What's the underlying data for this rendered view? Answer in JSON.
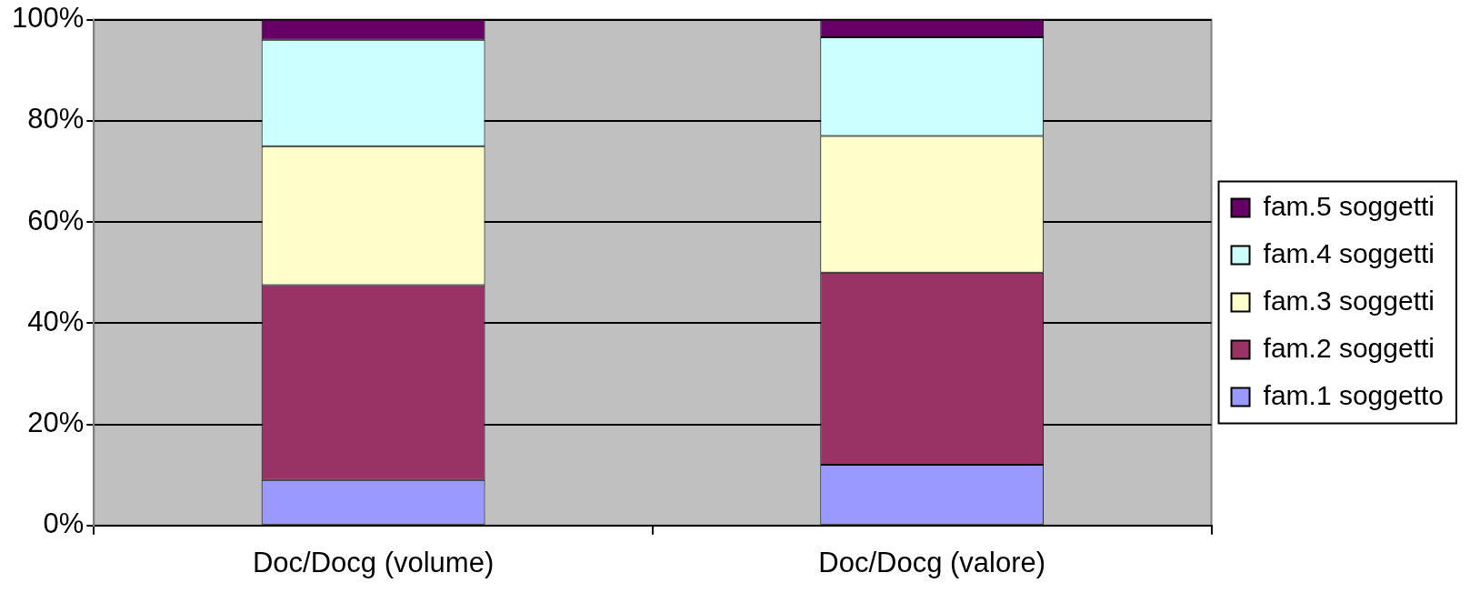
{
  "chart_data": {
    "type": "bar",
    "stacked": true,
    "categories": [
      "Doc/Docg (volume)",
      "Doc/Docg (valore)"
    ],
    "series": [
      {
        "name": "fam.1 soggetto",
        "color": "#9999ff",
        "values": [
          9,
          12
        ]
      },
      {
        "name": "fam.2 soggetti",
        "color": "#993366",
        "values": [
          38.5,
          38
        ]
      },
      {
        "name": "fam.3 soggetti",
        "color": "#ffffcc",
        "values": [
          27.5,
          27
        ]
      },
      {
        "name": "fam.4 soggetti",
        "color": "#ccffff",
        "values": [
          21,
          19.5
        ]
      },
      {
        "name": "fam.5 soggetti",
        "color": "#660066",
        "values": [
          4,
          3.5
        ]
      }
    ],
    "ylim": [
      0,
      100
    ],
    "yticks": [
      {
        "value": 0,
        "label": "0%"
      },
      {
        "value": 20,
        "label": "20%"
      },
      {
        "value": 40,
        "label": "40%"
      },
      {
        "value": 60,
        "label": "60%"
      },
      {
        "value": 80,
        "label": "80%"
      },
      {
        "value": 100,
        "label": "100%"
      }
    ],
    "grid": "y",
    "legend": "right"
  }
}
